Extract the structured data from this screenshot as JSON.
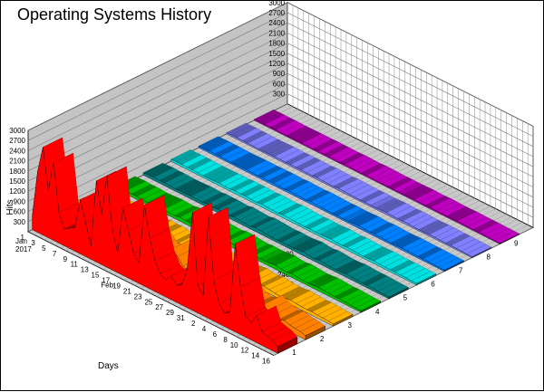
{
  "window": {
    "title": "Operating Systems History"
  },
  "chart_data": {
    "type": "area",
    "title": "Operating Systems History",
    "xlabel": "Days",
    "ylabel": "Hits",
    "zlim": [
      0,
      3000
    ],
    "z_ticks": [
      "300",
      "600",
      "900",
      "1200",
      "1500",
      "1800",
      "2100",
      "2400",
      "2700",
      "3000"
    ],
    "x_tick_labels": [
      "1",
      "3",
      "5",
      "7",
      "9",
      "11",
      "13",
      "15",
      "17",
      "19",
      "21",
      "23",
      "25",
      "27",
      "29",
      "31",
      "2",
      "4",
      "6",
      "8",
      "10",
      "12",
      "14",
      "16"
    ],
    "month_labels": [
      {
        "text": "Jan",
        "index": 0
      },
      {
        "text": "2017",
        "index": 0
      },
      {
        "text": "Feb",
        "index": 16
      }
    ],
    "x_dates": [
      "2017-01-01",
      "2017-01-02",
      "2017-01-03",
      "2017-01-04",
      "2017-01-05",
      "2017-01-06",
      "2017-01-07",
      "2017-01-08",
      "2017-01-09",
      "2017-01-10",
      "2017-01-11",
      "2017-01-12",
      "2017-01-13",
      "2017-01-14",
      "2017-01-15",
      "2017-01-16",
      "2017-01-17",
      "2017-01-18",
      "2017-01-19",
      "2017-01-20",
      "2017-01-21",
      "2017-01-22",
      "2017-01-23",
      "2017-01-24",
      "2017-01-25",
      "2017-01-26",
      "2017-01-27",
      "2017-01-28",
      "2017-01-29",
      "2017-01-30",
      "2017-01-31",
      "2017-02-01",
      "2017-02-02",
      "2017-02-03",
      "2017-02-04",
      "2017-02-05",
      "2017-02-06",
      "2017-02-07",
      "2017-02-08",
      "2017-02-09",
      "2017-02-10",
      "2017-02-11",
      "2017-02-12",
      "2017-02-13",
      "2017-02-14",
      "2017-02-15",
      "2017-02-16"
    ],
    "series": [
      {
        "name": "1",
        "color": "#ff0000",
        "values": [
          400,
          1800,
          2600,
          1400,
          2300,
          900,
          500,
          600,
          700,
          1600,
          1000,
          400,
          2400,
          1500,
          2700,
          1200,
          600,
          2000,
          1400,
          800,
          600,
          2400,
          1500,
          900,
          600,
          500,
          700,
          500,
          600,
          1100,
          2900,
          800,
          600,
          3000,
          1200,
          600,
          400,
          500,
          2600,
          1400,
          600,
          500,
          800,
          400,
          350,
          300,
          200
        ]
      },
      {
        "name": "2",
        "color": "#ff8000",
        "values": [
          200,
          350,
          300,
          250,
          300,
          200,
          150,
          200,
          250,
          300,
          250,
          200,
          500,
          350,
          400,
          300,
          250,
          600,
          450,
          300,
          250,
          700,
          550,
          350,
          250,
          200,
          300,
          250,
          250,
          350,
          600,
          300,
          250,
          500,
          350,
          250,
          200,
          250,
          400,
          300,
          250,
          200,
          250,
          200,
          180,
          160,
          120
        ]
      },
      {
        "name": "3",
        "color": "#ffb000",
        "values": [
          100,
          120,
          130,
          110,
          120,
          100,
          90,
          100,
          110,
          120,
          110,
          100,
          140,
          120,
          130,
          110,
          100,
          150,
          130,
          110,
          100,
          160,
          140,
          120,
          100,
          90,
          110,
          100,
          100,
          120,
          150,
          110,
          100,
          140,
          120,
          100,
          90,
          100,
          130,
          110,
          100,
          90,
          100,
          90,
          80,
          70,
          60
        ]
      },
      {
        "name": "4",
        "color": "#00c000",
        "values": [
          80,
          90,
          100,
          85,
          90,
          80,
          70,
          80,
          90,
          100,
          90,
          80,
          110,
          95,
          100,
          90,
          80,
          120,
          100,
          90,
          80,
          120,
          110,
          95,
          80,
          70,
          90,
          80,
          80,
          95,
          120,
          90,
          80,
          110,
          95,
          80,
          70,
          80,
          100,
          90,
          80,
          70,
          80,
          70,
          60,
          55,
          50
        ]
      },
      {
        "name": "5",
        "color": "#008080",
        "values": [
          70,
          80,
          90,
          80,
          85,
          75,
          70,
          75,
          80,
          90,
          85,
          75,
          100,
          90,
          95,
          85,
          75,
          110,
          95,
          85,
          75,
          110,
          100,
          90,
          75,
          70,
          85,
          75,
          75,
          90,
          110,
          85,
          75,
          100,
          90,
          75,
          70,
          75,
          95,
          85,
          75,
          70,
          75,
          70,
          60,
          55,
          50
        ]
      },
      {
        "name": "6",
        "color": "#00e0e0",
        "values": [
          60,
          65,
          70,
          65,
          68,
          62,
          58,
          60,
          65,
          70,
          68,
          62,
          80,
          72,
          75,
          68,
          62,
          85,
          75,
          68,
          62,
          85,
          80,
          72,
          62,
          58,
          68,
          62,
          62,
          72,
          85,
          68,
          62,
          80,
          72,
          62,
          58,
          62,
          75,
          68,
          62,
          58,
          62,
          58,
          52,
          48,
          44
        ]
      },
      {
        "name": "7",
        "color": "#0080ff",
        "values": [
          50,
          55,
          60,
          55,
          58,
          52,
          48,
          50,
          55,
          60,
          58,
          52,
          65,
          60,
          62,
          58,
          52,
          70,
          62,
          58,
          52,
          70,
          65,
          60,
          52,
          48,
          58,
          52,
          52,
          60,
          70,
          58,
          52,
          65,
          60,
          52,
          48,
          52,
          62,
          58,
          52,
          48,
          52,
          48,
          44,
          40,
          36
        ]
      },
      {
        "name": "8",
        "color": "#8080ff",
        "values": [
          40,
          45,
          50,
          45,
          48,
          42,
          38,
          40,
          45,
          50,
          48,
          42,
          55,
          50,
          52,
          48,
          42,
          60,
          52,
          48,
          42,
          60,
          55,
          50,
          42,
          38,
          48,
          42,
          42,
          50,
          60,
          48,
          42,
          55,
          50,
          42,
          38,
          42,
          52,
          48,
          42,
          38,
          42,
          38,
          34,
          30,
          26
        ]
      },
      {
        "name": "9",
        "color": "#c000c0",
        "values": [
          30,
          35,
          38,
          35,
          36,
          32,
          30,
          32,
          35,
          38,
          36,
          32,
          42,
          38,
          40,
          36,
          32,
          45,
          40,
          36,
          32,
          45,
          42,
          38,
          32,
          30,
          36,
          32,
          32,
          38,
          45,
          36,
          32,
          42,
          38,
          32,
          30,
          32,
          40,
          36,
          32,
          30,
          32,
          30,
          26,
          24,
          22
        ]
      }
    ]
  }
}
